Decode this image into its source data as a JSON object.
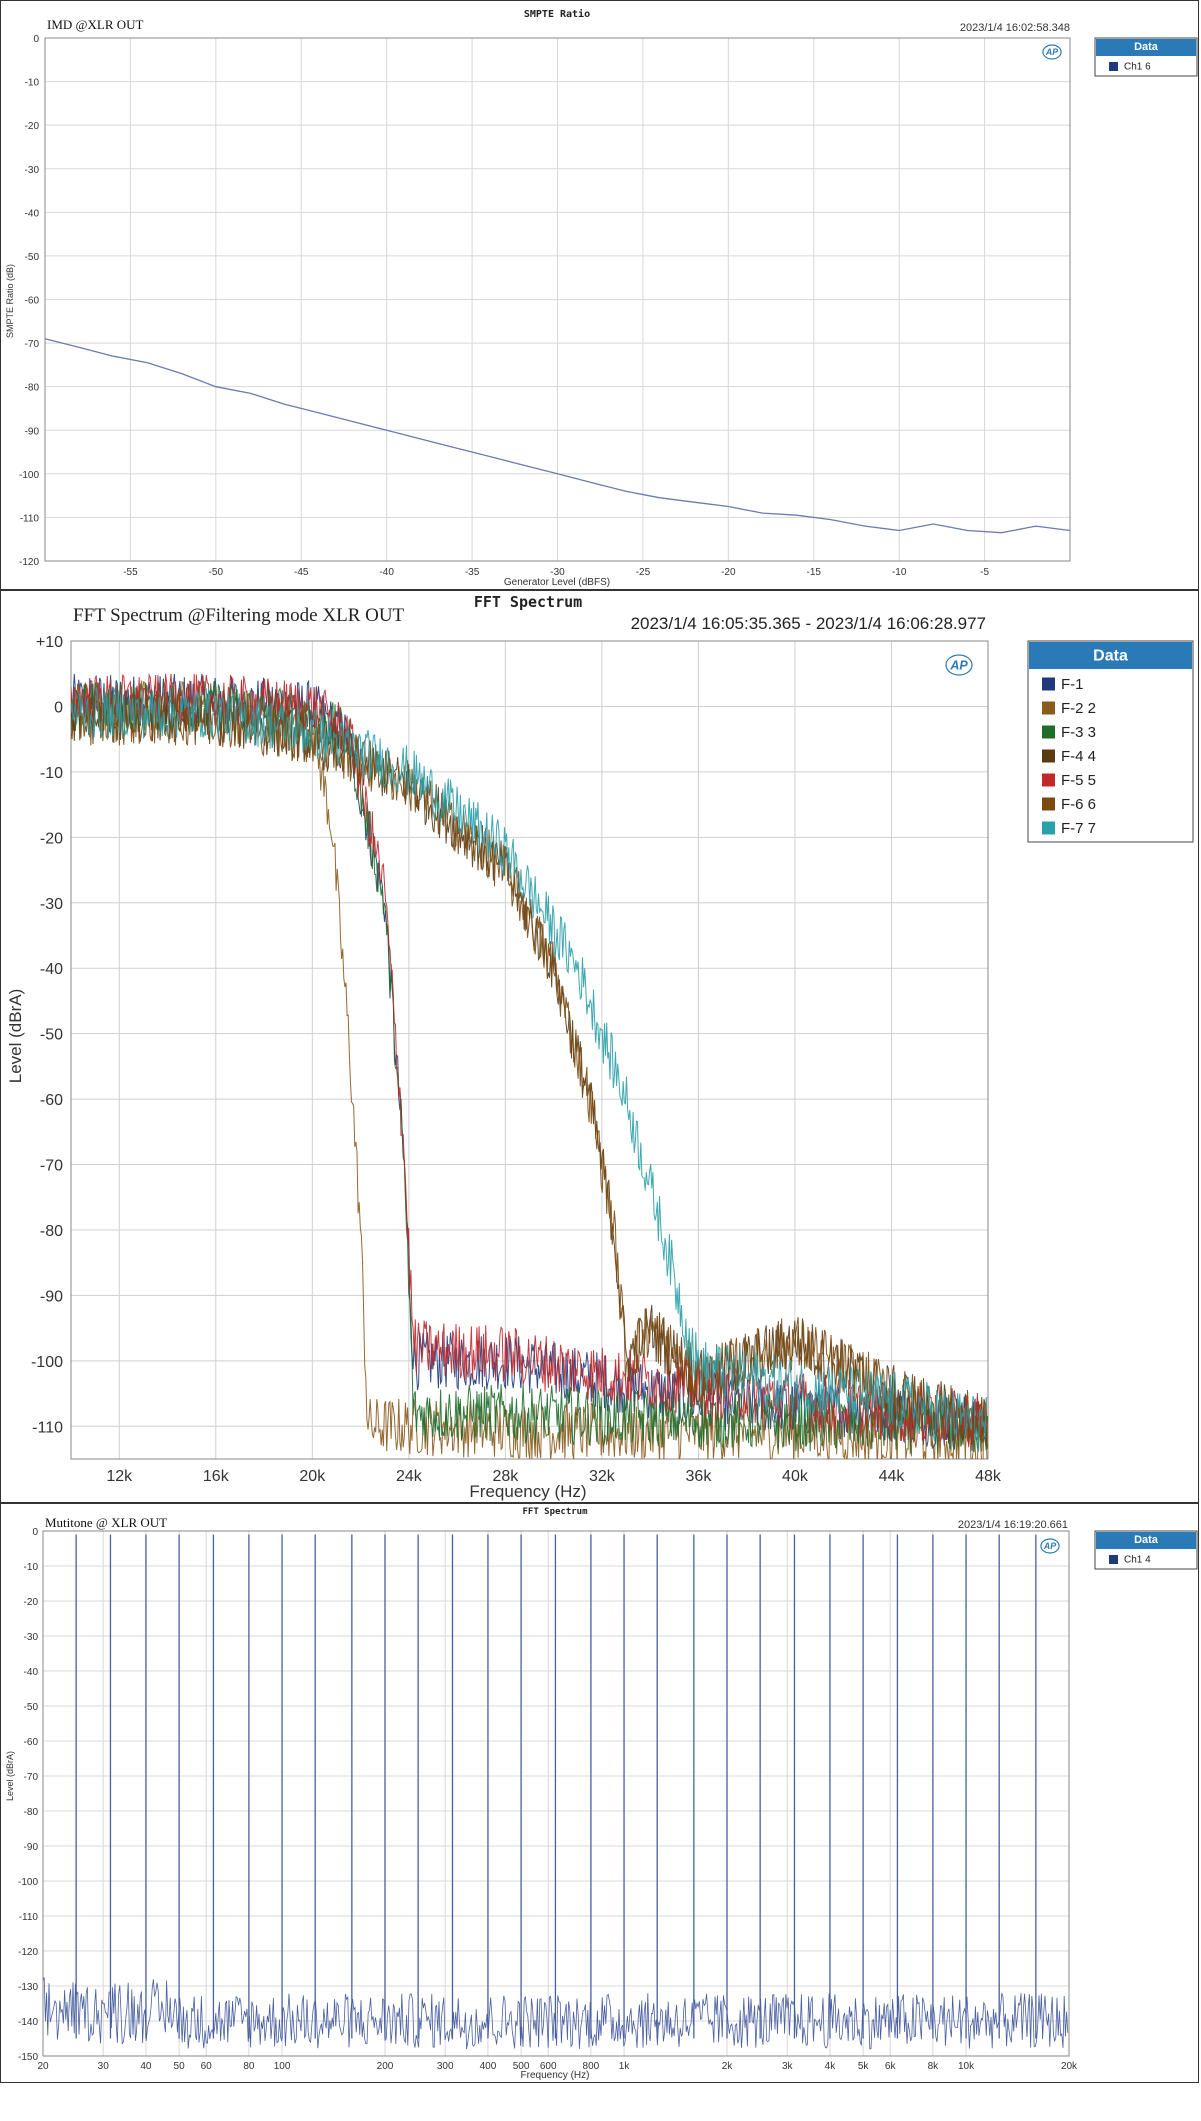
{
  "charts": [
    {
      "panel_title": "SMPTE Ratio",
      "name": "IMD @XLR OUT",
      "timestamp": "2023/1/4 16:02:58.348",
      "xlabel": "Generator Level (dBFS)",
      "ylabel": "SMPTE Ratio (dB)",
      "legend": {
        "title": "Data",
        "items": [
          {
            "label": "Ch1",
            "sub": "6",
            "color": "#1f3a7a"
          }
        ]
      },
      "logo": "AP",
      "colors": {
        "line": "#6a7cb0",
        "grid": "#d8d8d8",
        "legend_header": "#2a7ab8"
      }
    },
    {
      "panel_title": "FFT Spectrum",
      "name": "FFT Spectrum @Filtering mode XLR OUT",
      "timestamp": "2023/1/4 16:05:35.365 - 2023/1/4 16:06:28.977",
      "xlabel": "Frequency (Hz)",
      "ylabel": "Level (dBrA)",
      "legend": {
        "title": "Data",
        "items": [
          {
            "label": "F-1",
            "sub": "",
            "color": "#1f3a7a"
          },
          {
            "label": "F-2",
            "sub": "2",
            "color": "#8a5a1c"
          },
          {
            "label": "F-3",
            "sub": "3",
            "color": "#1e6e2a"
          },
          {
            "label": "F-4",
            "sub": "4",
            "color": "#5a3a10"
          },
          {
            "label": "F-5",
            "sub": "5",
            "color": "#c0282c"
          },
          {
            "label": "F-6",
            "sub": "6",
            "color": "#7a4a10"
          },
          {
            "label": "F-7",
            "sub": "7",
            "color": "#2aa0a8"
          }
        ]
      },
      "logo": "AP",
      "colors": {
        "grid": "#cfcfcf",
        "legend_header": "#2a7ab8"
      }
    },
    {
      "panel_title": "FFT Spectrum",
      "name": "Mutitone @ XLR OUT",
      "timestamp": "2023/1/4 16:19:20.661",
      "xlabel": "Frequency (Hz)",
      "ylabel": "Level (dBrA)",
      "legend": {
        "title": "Data",
        "items": [
          {
            "label": "Ch1",
            "sub": "4",
            "color": "#1f3a7a"
          }
        ]
      },
      "logo": "AP",
      "colors": {
        "line": "#4a5fa0",
        "grid": "#d8d8d8",
        "legend_header": "#2a7ab8"
      }
    }
  ],
  "chart_data": [
    {
      "type": "line",
      "title": "SMPTE Ratio",
      "xlabel": "Generator Level (dBFS)",
      "ylabel": "SMPTE Ratio (dB)",
      "xlim": [
        -60,
        0
      ],
      "ylim": [
        -120,
        0
      ],
      "x_ticks": [
        -55,
        -50,
        -45,
        -40,
        -35,
        -30,
        -25,
        -20,
        -15,
        -10,
        -5
      ],
      "y_ticks": [
        0,
        -10,
        -20,
        -30,
        -40,
        -50,
        -60,
        -70,
        -80,
        -90,
        -100,
        -110,
        -120
      ],
      "grid": true,
      "legend_position": "outside-right",
      "series": [
        {
          "name": "Ch1",
          "x": [
            -60,
            -58,
            -56,
            -54,
            -52,
            -50,
            -48,
            -46,
            -44,
            -42,
            -40,
            -38,
            -36,
            -34,
            -32,
            -30,
            -28,
            -26,
            -24,
            -22,
            -20,
            -18,
            -16,
            -14,
            -12,
            -10,
            -8,
            -6,
            -4,
            -2,
            0
          ],
          "y": [
            -69,
            -71,
            -73,
            -74.5,
            -77,
            -80,
            -81.5,
            -84,
            -86,
            -88,
            -90,
            -92,
            -94,
            -96,
            -98,
            -100,
            -102,
            -104,
            -105.5,
            -106.5,
            -107.5,
            -109,
            -109.5,
            -110.5,
            -112,
            -113,
            -111.5,
            -113,
            -113.5,
            -112,
            -113
          ]
        }
      ]
    },
    {
      "type": "line",
      "title": "FFT Spectrum",
      "xlabel": "Frequency (Hz)",
      "ylabel": "Level (dBrA)",
      "xlim": [
        10000,
        48000
      ],
      "ylim": [
        -115,
        10
      ],
      "x_tick_labels": [
        "12k",
        "16k",
        "20k",
        "24k",
        "28k",
        "32k",
        "36k",
        "40k",
        "44k",
        "48k"
      ],
      "x_ticks": [
        12000,
        16000,
        20000,
        24000,
        28000,
        32000,
        36000,
        40000,
        44000,
        48000
      ],
      "y_tick_labels": [
        "+10",
        "0",
        "-10",
        "-20",
        "-30",
        "-40",
        "-50",
        "-60",
        "-70",
        "-80",
        "-90",
        "-100",
        "-110"
      ],
      "y_ticks": [
        10,
        0,
        -10,
        -20,
        -30,
        -40,
        -50,
        -60,
        -70,
        -80,
        -90,
        -100,
        -110
      ],
      "grid": true,
      "legend_position": "outside-right",
      "series": [
        {
          "name": "F-1",
          "x": [
            10000,
            16000,
            20000,
            21500,
            23000,
            23800,
            24200,
            28000,
            32000,
            36000,
            40000,
            44000,
            48000
          ],
          "y": [
            1,
            1,
            0,
            -5,
            -30,
            -70,
            -100,
            -100,
            -103,
            -106,
            -107,
            -108,
            -110
          ]
        },
        {
          "name": "F-2",
          "x": [
            10000,
            16000,
            20000,
            20800,
            21500,
            22000,
            22300,
            24000,
            32000,
            40000,
            48000
          ],
          "y": [
            0,
            0,
            -3,
            -18,
            -50,
            -80,
            -110,
            -110,
            -111,
            -111,
            -112
          ]
        },
        {
          "name": "F-3",
          "x": [
            10000,
            16000,
            20000,
            21500,
            23000,
            23800,
            24200,
            28000,
            36000,
            48000
          ],
          "y": [
            0,
            0,
            -1,
            -5,
            -30,
            -70,
            -108,
            -108,
            -109,
            -110
          ]
        },
        {
          "name": "F-4",
          "x": [
            10000,
            16000,
            20000,
            24000,
            28000,
            30000,
            31500,
            32500,
            33000,
            34000,
            36000,
            40000,
            44000,
            48000
          ],
          "y": [
            -2,
            -2,
            -5,
            -12,
            -25,
            -40,
            -60,
            -80,
            -100,
            -95,
            -103,
            -97,
            -105,
            -110
          ]
        },
        {
          "name": "F-5",
          "x": [
            10000,
            16000,
            20000,
            21500,
            23000,
            23800,
            24200,
            28000,
            32000,
            36000,
            40000,
            44000,
            48000
          ],
          "y": [
            1,
            1,
            0,
            -4,
            -28,
            -68,
            -98,
            -99,
            -102,
            -104,
            -106,
            -108,
            -109
          ]
        },
        {
          "name": "F-6",
          "x": [
            10000,
            16000,
            20000,
            24000,
            28000,
            30000,
            31500,
            32500,
            33000,
            34000,
            36000,
            40000,
            44000,
            48000
          ],
          "y": [
            -2,
            -2,
            -5,
            -12,
            -25,
            -40,
            -60,
            -80,
            -100,
            -95,
            -103,
            -97,
            -105,
            -110
          ]
        },
        {
          "name": "F-7",
          "x": [
            10000,
            16000,
            20000,
            24000,
            28000,
            31000,
            33000,
            34500,
            35500,
            36000,
            40000,
            44000,
            48000
          ],
          "y": [
            -1,
            -1,
            -4,
            -10,
            -22,
            -40,
            -60,
            -80,
            -95,
            -101,
            -104,
            -106,
            -110
          ]
        }
      ]
    },
    {
      "type": "line",
      "title": "FFT Spectrum",
      "xlabel": "Frequency (Hz)",
      "ylabel": "Level (dBrA)",
      "xscale": "log",
      "xlim": [
        20,
        20000
      ],
      "ylim": [
        -150,
        0
      ],
      "x_tick_labels": [
        "20",
        "30",
        "40",
        "50",
        "60",
        "80",
        "100",
        "200",
        "300",
        "400",
        "500",
        "600",
        "800",
        "1k",
        "2k",
        "3k",
        "4k",
        "5k",
        "6k",
        "8k",
        "10k",
        "20k"
      ],
      "x_ticks": [
        20,
        30,
        40,
        50,
        60,
        80,
        100,
        200,
        300,
        400,
        500,
        600,
        800,
        1000,
        2000,
        3000,
        4000,
        5000,
        6000,
        8000,
        10000,
        20000
      ],
      "y_ticks": [
        0,
        -10,
        -20,
        -30,
        -40,
        -50,
        -60,
        -70,
        -80,
        -90,
        -100,
        -110,
        -120,
        -130,
        -140,
        -150
      ],
      "grid": true,
      "legend_position": "outside-right",
      "noise_floor_db": -140,
      "series": [
        {
          "name": "Ch1",
          "tone_level_db": -1,
          "tone_frequencies": [
            25,
            31.5,
            40,
            50,
            63,
            80,
            100,
            125,
            160,
            200,
            250,
            315,
            400,
            500,
            630,
            800,
            1000,
            1250,
            1600,
            2000,
            2500,
            3150,
            4000,
            5000,
            6300,
            8000,
            10000,
            12500,
            16000
          ]
        }
      ]
    }
  ]
}
